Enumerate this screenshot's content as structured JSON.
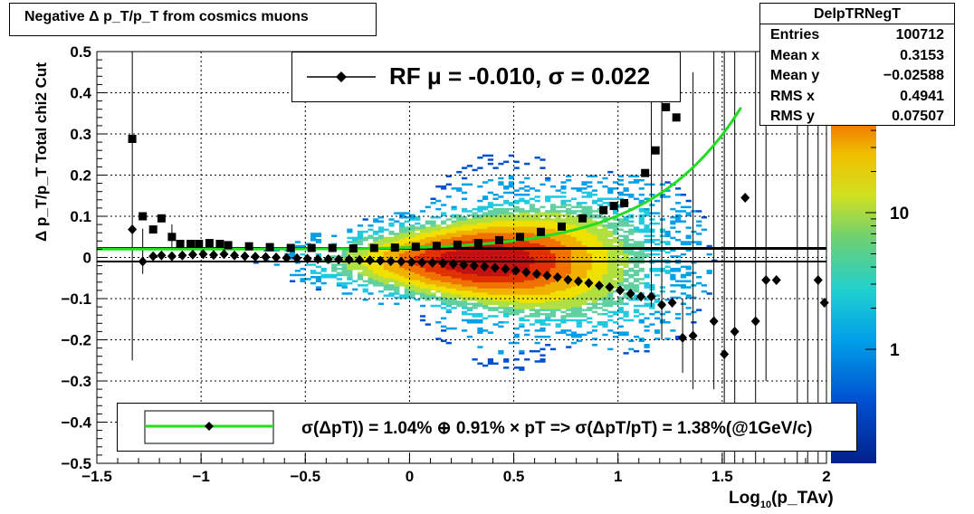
{
  "title": "Negative Δ p_T/p_T from cosmics muons",
  "stats": {
    "name": "DelpTRNegT",
    "rows": [
      {
        "label": "Entries",
        "value": "100712"
      },
      {
        "label": "Mean x",
        "value": "0.3153"
      },
      {
        "label": "Mean y",
        "value": "−0.02588"
      },
      {
        "label": "RMS x",
        "value": "0.4941"
      },
      {
        "label": "RMS y",
        "value": "0.07507"
      }
    ]
  },
  "legend_top": "RF μ = -0.010, σ =   0.022",
  "legend_bottom": "σ(ΔpT)) =  1.04% ⊕  0.91% × pT => σ(ΔpT/pT) =  1.38%(@1GeV/c)",
  "ylabel": "Δ p_T/p_T  Total chi2 Cut",
  "xlabel_main": "Log",
  "xlabel_sub": "10",
  "xlabel_rest": "(p_TAv)",
  "colors": {
    "fit_curve": "#22dd22",
    "markers": "#000000",
    "reference_line": "#000000"
  },
  "chart_data": {
    "type": "heatmap",
    "title": "Negative Δ p_T/p_T from cosmics muons",
    "xlabel": "Log10(p_TAv)",
    "ylabel": "Δ p_T/p_T  Total chi2 Cut",
    "xlim": [
      -1.5,
      2
    ],
    "ylim": [
      -0.5,
      0.5
    ],
    "x_ticks": [
      "−1.5",
      "−1",
      "−0.5",
      "0",
      "0.5",
      "1",
      "1.5",
      "2"
    ],
    "y_ticks": [
      "−0.5",
      "−0.4",
      "−0.3",
      "−0.2",
      "−0.1",
      "0",
      "0.1",
      "0.2",
      "0.3",
      "0.4",
      "0.5"
    ],
    "grid": true,
    "colorbar": {
      "scale": "log",
      "tick_labels": [
        "1",
        "10"
      ]
    },
    "reference_lines": [
      0.022,
      -0.01
    ],
    "series": [
      {
        "marker": "square",
        "x": [
          -1.33,
          -1.28,
          -1.23,
          -1.19,
          -1.14,
          -1.1,
          -1.05,
          -1.01,
          -0.96,
          -0.91,
          -0.87,
          -0.77,
          -0.67,
          -0.57,
          -0.47,
          -0.37,
          -0.27,
          -0.17,
          -0.07,
          0.03,
          0.13,
          0.23,
          0.33,
          0.43,
          0.53,
          0.63,
          0.73,
          0.83,
          0.93,
          0.98,
          1.03,
          1.13,
          1.18,
          1.23,
          1.28
        ],
        "y": [
          0.288,
          0.1,
          0.068,
          0.095,
          0.05,
          0.033,
          0.033,
          0.033,
          0.035,
          0.033,
          0.03,
          0.027,
          0.025,
          0.023,
          0.023,
          0.023,
          0.022,
          0.023,
          0.024,
          0.026,
          0.028,
          0.031,
          0.035,
          0.042,
          0.05,
          0.062,
          0.075,
          0.095,
          0.115,
          0.125,
          0.132,
          0.205,
          0.26,
          0.365,
          0.34
        ]
      },
      {
        "marker": "diamond",
        "x": [
          -1.33,
          -1.28,
          -1.23,
          -1.19,
          -1.14,
          -1.09,
          -1.04,
          -0.99,
          -0.94,
          -0.89,
          -0.84,
          -0.79,
          -0.74,
          -0.69,
          -0.64,
          -0.59,
          -0.54,
          -0.49,
          -0.44,
          -0.39,
          -0.34,
          -0.29,
          -0.24,
          -0.19,
          -0.14,
          -0.09,
          -0.04,
          0.01,
          0.06,
          0.11,
          0.16,
          0.21,
          0.26,
          0.31,
          0.36,
          0.41,
          0.46,
          0.51,
          0.56,
          0.61,
          0.66,
          0.71,
          0.76,
          0.81,
          0.86,
          0.91,
          0.96,
          1.01,
          1.06,
          1.11,
          1.16,
          1.21,
          1.26,
          1.31,
          1.36,
          1.46,
          1.51,
          1.56,
          1.61,
          1.66,
          1.71,
          1.76,
          1.96,
          1.99
        ],
        "y": [
          0.068,
          -0.01,
          0.003,
          0.005,
          0.003,
          0.005,
          0.007,
          0.008,
          0.006,
          0.008,
          0.005,
          0.003,
          0.002,
          0.001,
          0.0,
          -0.001,
          -0.002,
          -0.003,
          -0.004,
          -0.004,
          -0.005,
          -0.005,
          -0.006,
          -0.007,
          -0.008,
          -0.009,
          -0.01,
          -0.011,
          -0.012,
          -0.013,
          -0.014,
          -0.016,
          -0.018,
          -0.02,
          -0.022,
          -0.025,
          -0.028,
          -0.032,
          -0.036,
          -0.04,
          -0.044,
          -0.048,
          -0.054,
          -0.058,
          -0.062,
          -0.068,
          -0.072,
          -0.08,
          -0.088,
          -0.095,
          -0.095,
          -0.115,
          -0.11,
          -0.195,
          -0.19,
          -0.155,
          -0.235,
          -0.18,
          0.145,
          -0.155,
          -0.055,
          -0.055,
          -0.055,
          -0.11
        ]
      }
    ]
  }
}
